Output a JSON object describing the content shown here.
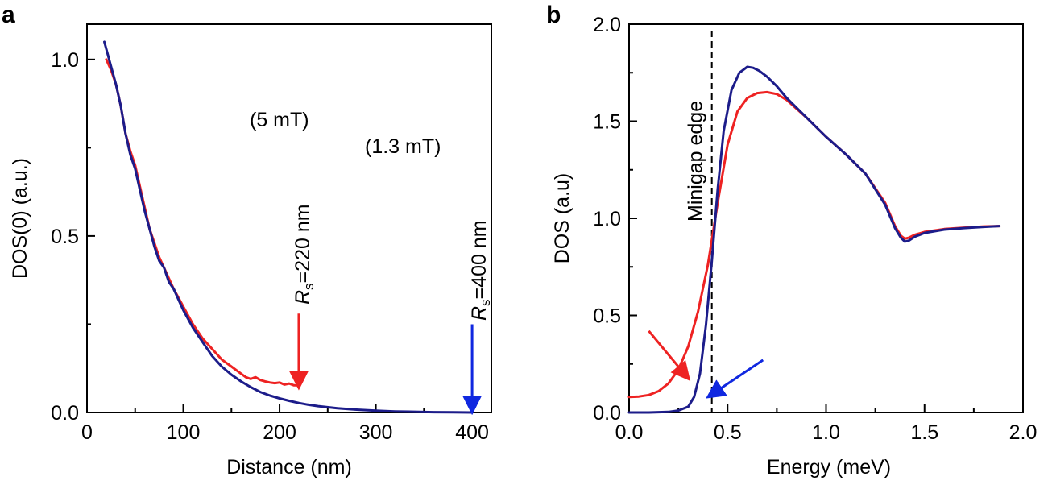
{
  "colors": {
    "red": "#ee2222",
    "blue": "#1c1c8a",
    "black": "#000000"
  },
  "chart_data": [
    {
      "panel": "a",
      "type": "line",
      "xlabel": "Distance (nm)",
      "ylabel": "DOS(0) (a.u.)",
      "xlim": [
        0,
        420
      ],
      "ylim": [
        0,
        1.1
      ],
      "xticks": [
        0,
        100,
        200,
        300,
        400
      ],
      "xtick_labels": [
        "0",
        "100",
        "200",
        "300",
        "400"
      ],
      "yticks": [
        0,
        0.5,
        1.0
      ],
      "ytick_labels": [
        "0.0",
        "0.5",
        "1.0"
      ],
      "yminor_ticks": [
        0.25,
        0.75
      ],
      "xminor_ticks": [
        50,
        150,
        250,
        350
      ],
      "series": [
        {
          "name": "5 mT",
          "color": "#ee2222",
          "x": [
            20,
            25,
            30,
            35,
            40,
            45,
            50,
            55,
            60,
            65,
            70,
            75,
            80,
            85,
            90,
            100,
            110,
            120,
            130,
            140,
            150,
            160,
            165,
            170,
            175,
            180,
            185,
            190,
            195,
            200,
            205,
            210,
            215,
            220
          ],
          "y": [
            1.0,
            0.97,
            0.93,
            0.87,
            0.79,
            0.74,
            0.7,
            0.64,
            0.58,
            0.52,
            0.48,
            0.44,
            0.41,
            0.38,
            0.35,
            0.3,
            0.25,
            0.21,
            0.18,
            0.15,
            0.13,
            0.11,
            0.1,
            0.095,
            0.1,
            0.092,
            0.088,
            0.085,
            0.083,
            0.085,
            0.079,
            0.082,
            0.077,
            0.077
          ]
        },
        {
          "name": "1.3 mT",
          "color": "#1c1c8a",
          "x": [
            18,
            25,
            30,
            35,
            40,
            45,
            50,
            55,
            60,
            65,
            70,
            75,
            80,
            85,
            90,
            100,
            110,
            120,
            130,
            140,
            150,
            160,
            170,
            180,
            190,
            200,
            210,
            220,
            230,
            240,
            260,
            280,
            300,
            320,
            340,
            360,
            380,
            400
          ],
          "y": [
            1.05,
            0.98,
            0.93,
            0.87,
            0.79,
            0.73,
            0.69,
            0.63,
            0.57,
            0.52,
            0.47,
            0.43,
            0.41,
            0.37,
            0.35,
            0.29,
            0.24,
            0.2,
            0.16,
            0.13,
            0.107,
            0.088,
            0.072,
            0.058,
            0.048,
            0.04,
            0.033,
            0.027,
            0.022,
            0.018,
            0.012,
            0.008,
            0.005,
            0.003,
            0.002,
            0.001,
            0.0005,
            0.0
          ]
        }
      ],
      "annotations": {
        "field_5mt": "(5 mT)",
        "field_13mt": "(1.3 mT)",
        "rs220_symbol": "R",
        "rs220_sub": "s",
        "rs220_value": "=220 nm",
        "rs400_symbol": "R",
        "rs400_sub": "s",
        "rs400_value": "=400 nm"
      },
      "arrows": [
        {
          "color": "#ee2222",
          "x": 220,
          "y_start": 0.28,
          "y_end": 0.09
        },
        {
          "color": "#1028e0",
          "x": 400,
          "y_start": 0.25,
          "y_end": 0.02
        }
      ]
    },
    {
      "panel": "b",
      "type": "line",
      "xlabel": "Energy (meV)",
      "ylabel": "DOS (a.u)",
      "xlim": [
        0,
        2.0
      ],
      "ylim": [
        0,
        2.0
      ],
      "xticks": [
        0,
        0.5,
        1.0,
        1.5,
        2.0
      ],
      "xtick_labels": [
        "0.0",
        "0.5",
        "1.0",
        "1.5",
        "2.0"
      ],
      "yticks": [
        0,
        0.5,
        1.0,
        1.5,
        2.0
      ],
      "ytick_labels": [
        "0.0",
        "0.5",
        "1.0",
        "1.5",
        "2.0"
      ],
      "xminor_ticks": [
        0.25,
        0.75,
        1.25,
        1.75
      ],
      "yminor_ticks": [
        0.25,
        0.75,
        1.25,
        1.75
      ],
      "vline": {
        "x": 0.42,
        "label": "Minigap edge"
      },
      "series": [
        {
          "name": "red",
          "color": "#ee2222",
          "x": [
            0,
            0.05,
            0.1,
            0.15,
            0.2,
            0.25,
            0.3,
            0.35,
            0.4,
            0.45,
            0.5,
            0.55,
            0.6,
            0.65,
            0.7,
            0.75,
            0.8,
            0.9,
            1.0,
            1.1,
            1.2,
            1.3,
            1.35,
            1.38,
            1.4,
            1.42,
            1.45,
            1.5,
            1.6,
            1.7,
            1.8,
            1.88
          ],
          "y": [
            0.08,
            0.082,
            0.09,
            0.11,
            0.15,
            0.22,
            0.34,
            0.52,
            0.76,
            1.08,
            1.38,
            1.55,
            1.62,
            1.645,
            1.65,
            1.64,
            1.61,
            1.52,
            1.42,
            1.33,
            1.23,
            1.08,
            0.96,
            0.91,
            0.895,
            0.9,
            0.915,
            0.93,
            0.945,
            0.952,
            0.958,
            0.96
          ]
        },
        {
          "name": "blue",
          "color": "#1c1c8a",
          "x": [
            0,
            0.1,
            0.2,
            0.25,
            0.3,
            0.33,
            0.36,
            0.39,
            0.42,
            0.45,
            0.48,
            0.52,
            0.56,
            0.6,
            0.63,
            0.66,
            0.7,
            0.75,
            0.8,
            0.9,
            1.0,
            1.1,
            1.2,
            1.3,
            1.35,
            1.38,
            1.4,
            1.42,
            1.45,
            1.5,
            1.6,
            1.7,
            1.8,
            1.88
          ],
          "y": [
            0.0,
            0.0,
            0.003,
            0.01,
            0.03,
            0.08,
            0.2,
            0.45,
            0.78,
            1.15,
            1.45,
            1.66,
            1.75,
            1.78,
            1.775,
            1.76,
            1.73,
            1.68,
            1.62,
            1.52,
            1.42,
            1.33,
            1.23,
            1.07,
            0.95,
            0.9,
            0.88,
            0.885,
            0.905,
            0.925,
            0.942,
            0.95,
            0.956,
            0.96
          ]
        }
      ],
      "arrows": [
        {
          "color": "#ee2222",
          "x_start": 0.1,
          "y_start": 0.42,
          "x_end": 0.28,
          "y_end": 0.2
        },
        {
          "color": "#1028e0",
          "x_start": 0.68,
          "y_start": 0.27,
          "x_end": 0.43,
          "y_end": 0.1
        }
      ]
    }
  ]
}
